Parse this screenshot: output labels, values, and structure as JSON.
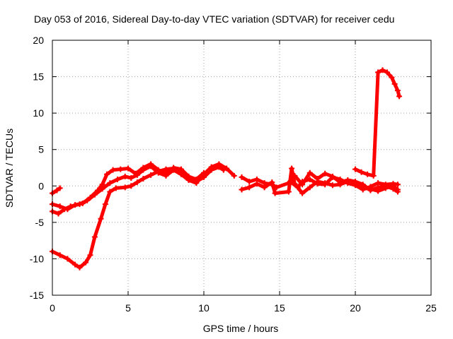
{
  "chart_data": {
    "type": "scatter",
    "title": "Day 053 of 2016, Sidereal Day-to-day VTEC variation (SDTVAR) for receiver cedu",
    "xlabel": "GPS time / hours",
    "ylabel": "SDTVAR / TECUs",
    "xlim": [
      0,
      25
    ],
    "ylim": [
      -15,
      20
    ],
    "xticks": [
      0,
      5,
      10,
      15,
      20,
      25
    ],
    "yticks": [
      -15,
      -10,
      -5,
      0,
      5,
      10,
      15,
      20
    ],
    "grid": true,
    "marker_color": "#ff0000",
    "series": [
      {
        "name": "track-a",
        "points": [
          [
            0,
            -9
          ],
          [
            0.5,
            -9.5
          ],
          [
            1,
            -10
          ],
          [
            1.5,
            -10.8
          ],
          [
            1.8,
            -11.2
          ],
          [
            2.2,
            -10.5
          ],
          [
            2.5,
            -9.5
          ],
          [
            2.8,
            -7
          ],
          [
            3.2,
            -4.5
          ],
          [
            3.5,
            -2.5
          ],
          [
            3.8,
            -0.8
          ],
          [
            4.2,
            -0.3
          ],
          [
            4.8,
            -0.2
          ],
          [
            5.2,
            0
          ],
          [
            5.6,
            0.5
          ],
          [
            6,
            1
          ],
          [
            6.5,
            1.5
          ],
          [
            7,
            2
          ],
          [
            7.5,
            2.3
          ],
          [
            8,
            2.4
          ],
          [
            8.5,
            2
          ],
          [
            9,
            1.2
          ],
          [
            9.5,
            0.6
          ],
          [
            10,
            1.2
          ],
          [
            10.5,
            2.2
          ],
          [
            11,
            2.6
          ],
          [
            11.3,
            2.2
          ]
        ]
      },
      {
        "name": "track-b",
        "points": [
          [
            0,
            -3.5
          ],
          [
            0.4,
            -3.8
          ],
          [
            0.8,
            -3.2
          ],
          [
            1.2,
            -2.8
          ],
          [
            1.8,
            -2.5
          ],
          [
            2.3,
            -2
          ],
          [
            2.8,
            -1.2
          ],
          [
            3.3,
            -0.4
          ],
          [
            3.8,
            0.4
          ],
          [
            4.3,
            0.9
          ],
          [
            4.8,
            1.3
          ],
          [
            5.2,
            1.1
          ],
          [
            5.6,
            1.5
          ],
          [
            6,
            2.2
          ],
          [
            6.5,
            2.7
          ],
          [
            7,
            1.8
          ],
          [
            7.5,
            1.4
          ],
          [
            8,
            2.2
          ],
          [
            8.5,
            1.6
          ],
          [
            9,
            0.8
          ],
          [
            9.5,
            0.4
          ],
          [
            10,
            1.6
          ],
          [
            10.5,
            2.6
          ],
          [
            11,
            3
          ],
          [
            11.5,
            2.4
          ],
          [
            12,
            1.4
          ]
        ]
      },
      {
        "name": "track-c",
        "points": [
          [
            0,
            -2.5
          ],
          [
            0.5,
            -2.8
          ],
          [
            1,
            -3.2
          ],
          [
            1.5,
            -2.6
          ],
          [
            2,
            -2.4
          ],
          [
            2.5,
            -1.6
          ],
          [
            3,
            -0.6
          ],
          [
            3.3,
            0.2
          ],
          [
            3.6,
            1.6
          ],
          [
            4,
            2.2
          ],
          [
            4.5,
            2.3
          ],
          [
            5,
            2.4
          ],
          [
            5.5,
            1.7
          ],
          [
            6,
            2.5
          ],
          [
            6.5,
            3
          ],
          [
            7,
            2.2
          ],
          [
            7.5,
            1.7
          ],
          [
            8,
            2.5
          ],
          [
            8.5,
            2.3
          ],
          [
            9,
            1.3
          ],
          [
            9.5,
            0.9
          ],
          [
            10,
            1.8
          ]
        ]
      },
      {
        "name": "track-d",
        "points": [
          [
            0,
            -1
          ],
          [
            0.3,
            -0.6
          ],
          [
            0.5,
            -0.3
          ]
        ]
      },
      {
        "name": "track-e",
        "points": [
          [
            12.5,
            1.2
          ],
          [
            13,
            0.6
          ],
          [
            13.5,
            0.9
          ],
          [
            14,
            0.4
          ],
          [
            14.5,
            0.2
          ],
          [
            14.8,
            -0.2
          ],
          [
            15.6,
            0.4
          ],
          [
            16,
            1.4
          ],
          [
            16.5,
            0.2
          ],
          [
            17,
            1.8
          ],
          [
            17.5,
            1
          ],
          [
            18,
            1.7
          ],
          [
            18.5,
            1.3
          ],
          [
            19,
            0.5
          ],
          [
            19.5,
            0.8
          ],
          [
            20,
            0.6
          ],
          [
            20.5,
            0.2
          ],
          [
            21,
            -0.6
          ],
          [
            21.5,
            -0.2
          ],
          [
            22,
            0
          ],
          [
            22.5,
            -0.4
          ],
          [
            22.8,
            -0.8
          ]
        ]
      },
      {
        "name": "track-f",
        "points": [
          [
            12.5,
            -0.5
          ],
          [
            13,
            -0.2
          ],
          [
            13.5,
            0.3
          ],
          [
            14,
            -0.2
          ],
          [
            14.5,
            0.5
          ],
          [
            14.7,
            -1
          ],
          [
            15.6,
            -0.8
          ],
          [
            15.8,
            2.4
          ],
          [
            16,
            0.3
          ],
          [
            16.5,
            -1
          ],
          [
            17,
            -0.2
          ],
          [
            17.5,
            0.6
          ],
          [
            18,
            0.4
          ],
          [
            18.5,
            0.1
          ],
          [
            19,
            0.2
          ],
          [
            19.5,
            0.6
          ],
          [
            20,
            0.2
          ],
          [
            20.5,
            -0.3
          ],
          [
            21,
            -0.4
          ],
          [
            21.5,
            -0.7
          ],
          [
            22,
            -0.3
          ],
          [
            22.5,
            0
          ],
          [
            22.8,
            -0.5
          ]
        ]
      },
      {
        "name": "track-g",
        "points": [
          [
            15.7,
            0.6
          ],
          [
            16.2,
            -0.2
          ],
          [
            16.5,
            0.6
          ],
          [
            17,
            0.9
          ],
          [
            17.5,
            0.3
          ],
          [
            18,
            0.2
          ],
          [
            18.5,
            1.2
          ],
          [
            19,
            0.9
          ],
          [
            19.5,
            0.4
          ],
          [
            20,
            0.1
          ],
          [
            20.5,
            -0.5
          ],
          [
            21,
            -0.1
          ],
          [
            21.5,
            0.4
          ],
          [
            22,
            0.2
          ],
          [
            22.5,
            0.3
          ],
          [
            22.8,
            0.2
          ]
        ]
      },
      {
        "name": "track-h",
        "points": [
          [
            20,
            2.3
          ],
          [
            20.4,
            1.9
          ],
          [
            20.8,
            1.6
          ],
          [
            21.2,
            1.4
          ],
          [
            21.5,
            15.6
          ],
          [
            21.8,
            15.9
          ],
          [
            22.1,
            15.6
          ],
          [
            22.4,
            14.9
          ],
          [
            22.6,
            14
          ],
          [
            22.8,
            13.1
          ],
          [
            22.9,
            12.3
          ]
        ]
      }
    ]
  }
}
